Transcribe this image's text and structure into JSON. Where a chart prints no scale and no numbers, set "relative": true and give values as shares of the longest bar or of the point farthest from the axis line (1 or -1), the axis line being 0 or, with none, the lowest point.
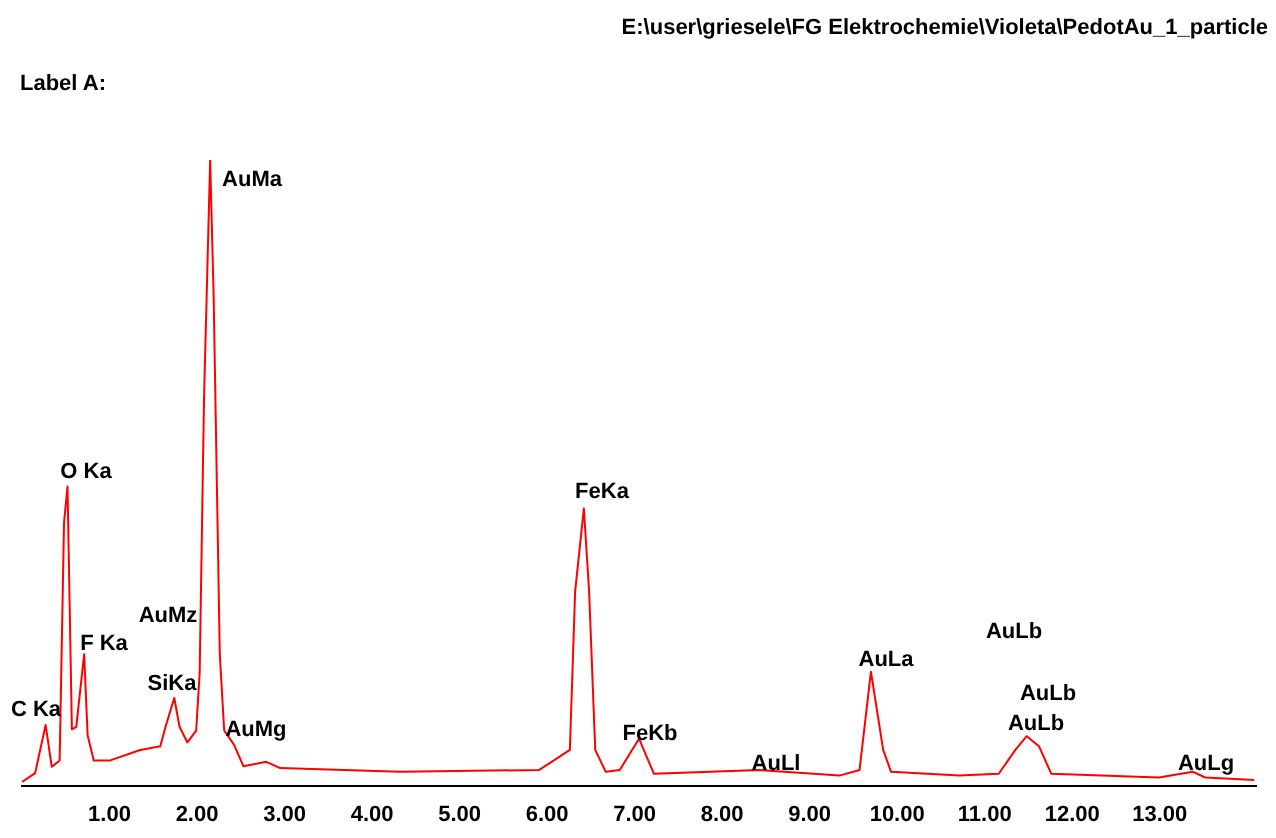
{
  "chart_data": {
    "type": "line",
    "title": "E:\\user\\griesele\\FG Elektrochemie\\Violeta\\PedotAu_1_particle",
    "subtitle": "Label A:",
    "relative": true,
    "xlim": [
      0,
      14.1
    ],
    "xticks": [
      {
        "value": 1,
        "label": "1.00"
      },
      {
        "value": 2,
        "label": "2.00"
      },
      {
        "value": 3,
        "label": "3.00"
      },
      {
        "value": 4,
        "label": "4.00"
      },
      {
        "value": 5,
        "label": "5.00"
      },
      {
        "value": 6,
        "label": "6.00"
      },
      {
        "value": 7,
        "label": "7.00"
      },
      {
        "value": 8,
        "label": "8.00"
      },
      {
        "value": 9,
        "label": "9.00"
      },
      {
        "value": 10,
        "label": "10.00"
      },
      {
        "value": 11,
        "label": "11.00"
      },
      {
        "value": 12,
        "label": "12.00"
      },
      {
        "value": 13,
        "label": "13.00"
      }
    ],
    "grid": false,
    "legend": false,
    "marker": "none",
    "line_style": "solid",
    "series": [
      {
        "color": "#ff0000",
        "x": [
          0,
          0.15,
          0.27,
          0.34,
          0.43,
          0.48,
          0.52,
          0.57,
          0.62,
          0.71,
          0.75,
          0.82,
          1.0,
          1.35,
          1.58,
          1.64,
          1.74,
          1.8,
          1.89,
          1.99,
          2.03,
          2.08,
          2.15,
          2.19,
          2.26,
          2.31,
          2.42,
          2.53,
          2.79,
          2.95,
          4.32,
          5.91,
          6.26,
          6.32,
          6.42,
          6.48,
          6.55,
          6.67,
          6.83,
          7.05,
          7.22,
          8.42,
          9.34,
          9.57,
          9.7,
          9.84,
          9.93,
          10.71,
          11.16,
          11.35,
          11.48,
          11.62,
          11.76,
          12.99,
          13.38,
          13.52,
          14.08
        ],
        "values": [
          0.006,
          0.02,
          0.097,
          0.03,
          0.04,
          0.42,
          0.478,
          0.09,
          0.094,
          0.21,
          0.08,
          0.04,
          0.04,
          0.057,
          0.063,
          0.094,
          0.14,
          0.094,
          0.069,
          0.088,
          0.18,
          0.62,
          1.0,
          0.78,
          0.21,
          0.088,
          0.066,
          0.031,
          0.038,
          0.028,
          0.022,
          0.025,
          0.057,
          0.31,
          0.443,
          0.31,
          0.057,
          0.022,
          0.025,
          0.075,
          0.019,
          0.025,
          0.016,
          0.025,
          0.182,
          0.057,
          0.022,
          0.016,
          0.019,
          0.057,
          0.079,
          0.063,
          0.019,
          0.013,
          0.022,
          0.013,
          0.009
        ]
      }
    ],
    "annotations": [
      "C Ka",
      "O Ka",
      "F Ka",
      "SiKa",
      "AuMz",
      "AuMa",
      "AuMg",
      "FeKa",
      "FeKb",
      "AuLl",
      "AuLa",
      "AuLb",
      "AuLb",
      "AuLb",
      "AuLg"
    ]
  }
}
